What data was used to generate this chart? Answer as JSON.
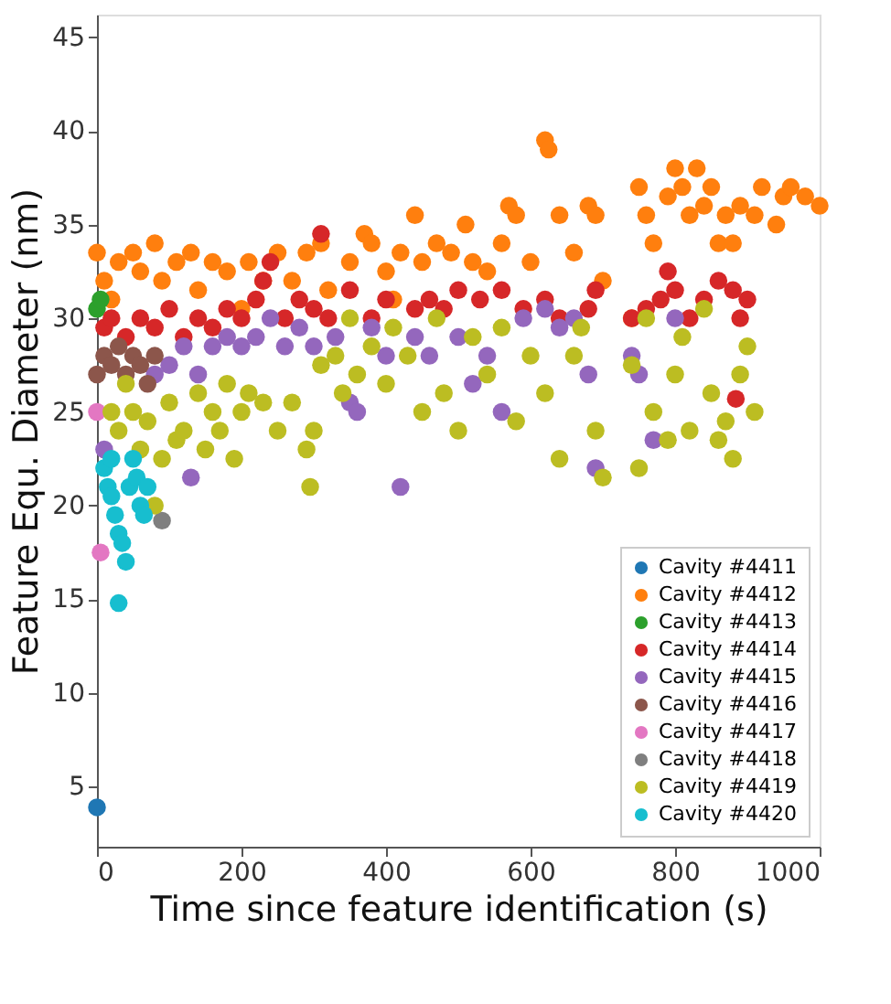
{
  "chart_data": {
    "type": "scatter",
    "xlabel": "Time since feature identification (s)",
    "ylabel": "Feature Equ. Diameter (nm)",
    "xlim": [
      0,
      1000
    ],
    "ylim": [
      1.8,
      46.2
    ],
    "xticks": [
      0,
      200,
      400,
      600,
      800,
      1000
    ],
    "yticks": [
      5,
      10,
      15,
      20,
      25,
      30,
      35,
      40,
      45
    ],
    "grid": false,
    "legend": "bottom right",
    "marker": "circle",
    "series": [
      {
        "name": "Cavity #4411",
        "color": "#1f77b4",
        "x": [
          0
        ],
        "values": [
          3.9
        ]
      },
      {
        "name": "Cavity #4412",
        "color": "#ff7f0e",
        "x": [
          0,
          10,
          20,
          30,
          50,
          60,
          80,
          90,
          110,
          130,
          140,
          160,
          180,
          200,
          210,
          230,
          250,
          270,
          290,
          310,
          320,
          350,
          370,
          380,
          400,
          410,
          420,
          440,
          450,
          470,
          490,
          510,
          520,
          540,
          560,
          570,
          580,
          600,
          620,
          625,
          640,
          660,
          680,
          690,
          700,
          740,
          750,
          760,
          770,
          790,
          800,
          810,
          820,
          830,
          840,
          850,
          860,
          870,
          880,
          890,
          910,
          920,
          940,
          950,
          960,
          980,
          1000
        ],
        "values": [
          33.5,
          32,
          31,
          33,
          33.5,
          32.5,
          34,
          32,
          33,
          33.5,
          31.5,
          33,
          32.5,
          30.5,
          33,
          32,
          33.5,
          32,
          33.5,
          34,
          31.5,
          33,
          34.5,
          34,
          32.5,
          31,
          33.5,
          35.5,
          33,
          34,
          33.5,
          35,
          33,
          32.5,
          34,
          36,
          35.5,
          33,
          39.5,
          39,
          35.5,
          33.5,
          36,
          35.5,
          32,
          30,
          37,
          35.5,
          34,
          36.5,
          38,
          37,
          35.5,
          38,
          36,
          37,
          34,
          35.5,
          34,
          36,
          35.5,
          37,
          35,
          36.5,
          37,
          36.5,
          36
        ]
      },
      {
        "name": "Cavity #4413",
        "color": "#2ca02c",
        "x": [
          0,
          5
        ],
        "values": [
          30.5,
          31
        ]
      },
      {
        "name": "Cavity #4414",
        "color": "#d62728",
        "x": [
          10,
          20,
          40,
          60,
          80,
          100,
          120,
          140,
          160,
          180,
          200,
          220,
          230,
          240,
          260,
          280,
          300,
          310,
          320,
          350,
          380,
          400,
          440,
          460,
          480,
          500,
          530,
          560,
          590,
          620,
          640,
          680,
          690,
          740,
          760,
          780,
          790,
          800,
          820,
          840,
          860,
          880,
          884,
          890,
          900
        ],
        "values": [
          29.5,
          30,
          29,
          30,
          29.5,
          30.5,
          29,
          30,
          29.5,
          30.5,
          30,
          31,
          32,
          33,
          30,
          31,
          30.5,
          34.5,
          30,
          31.5,
          30,
          31,
          30.5,
          31,
          30.5,
          31.5,
          31,
          31.5,
          30.5,
          31,
          30,
          30.5,
          31.5,
          30,
          30.5,
          31,
          32.5,
          31.5,
          30,
          31,
          32,
          31.5,
          25.7,
          30,
          31
        ]
      },
      {
        "name": "Cavity #4415",
        "color": "#9467bd",
        "x": [
          10,
          80,
          100,
          120,
          130,
          140,
          160,
          180,
          200,
          220,
          240,
          260,
          280,
          300,
          330,
          350,
          360,
          380,
          400,
          420,
          440,
          460,
          500,
          520,
          540,
          560,
          590,
          620,
          640,
          660,
          680,
          690,
          740,
          750,
          770,
          800
        ],
        "values": [
          23,
          27,
          27.5,
          28.5,
          21.5,
          27,
          28.5,
          29,
          28.5,
          29,
          30,
          28.5,
          29.5,
          28.5,
          29,
          25.5,
          25,
          29.5,
          28,
          21,
          29,
          28,
          29,
          26.5,
          28,
          25,
          30,
          30.5,
          29.5,
          30,
          27,
          22,
          28,
          27,
          23.5,
          30
        ]
      },
      {
        "name": "Cavity #4416",
        "color": "#8c564b",
        "x": [
          0,
          10,
          20,
          30,
          40,
          50,
          60,
          70,
          80
        ],
        "values": [
          27,
          28,
          27.5,
          28.5,
          27,
          28,
          27.5,
          26.5,
          28
        ]
      },
      {
        "name": "Cavity #4417",
        "color": "#e377c2",
        "x": [
          5,
          0
        ],
        "values": [
          17.5,
          25
        ]
      },
      {
        "name": "Cavity #4418",
        "color": "#7f7f7f",
        "x": [
          90
        ],
        "values": [
          19.2
        ]
      },
      {
        "name": "Cavity #4419",
        "color": "#bcbd22",
        "x": [
          20,
          30,
          40,
          50,
          60,
          70,
          80,
          90,
          100,
          110,
          120,
          140,
          150,
          160,
          170,
          180,
          190,
          200,
          210,
          230,
          250,
          270,
          290,
          295,
          300,
          310,
          330,
          340,
          350,
          360,
          380,
          400,
          410,
          430,
          450,
          470,
          480,
          500,
          520,
          540,
          560,
          580,
          600,
          620,
          640,
          660,
          670,
          690,
          700,
          740,
          750,
          760,
          770,
          790,
          800,
          810,
          820,
          840,
          850,
          860,
          870,
          880,
          890,
          900,
          910
        ],
        "values": [
          25,
          24,
          26.5,
          25,
          23,
          24.5,
          20,
          22.5,
          25.5,
          23.5,
          24,
          26,
          23,
          25,
          24,
          26.5,
          22.5,
          25,
          26,
          25.5,
          24,
          25.5,
          23,
          21,
          24,
          27.5,
          28,
          26,
          30,
          27,
          28.5,
          26.5,
          29.5,
          28,
          25,
          30,
          26,
          24,
          29,
          27,
          29.5,
          24.5,
          28,
          26,
          22.5,
          28,
          29.5,
          24,
          21.5,
          27.5,
          22,
          30,
          25,
          23.5,
          27,
          29,
          24,
          30.5,
          26,
          23.5,
          24.5,
          22.5,
          27,
          28.5,
          25
        ]
      },
      {
        "name": "Cavity #4420",
        "color": "#17becf",
        "x": [
          10,
          15,
          20,
          25,
          30,
          35,
          40,
          30,
          45,
          55,
          60,
          65,
          70,
          50,
          20
        ],
        "values": [
          22,
          21,
          20.5,
          19.5,
          18.5,
          18,
          17,
          14.8,
          21,
          21.5,
          20,
          19.5,
          21,
          22.5,
          22.5
        ]
      }
    ]
  }
}
